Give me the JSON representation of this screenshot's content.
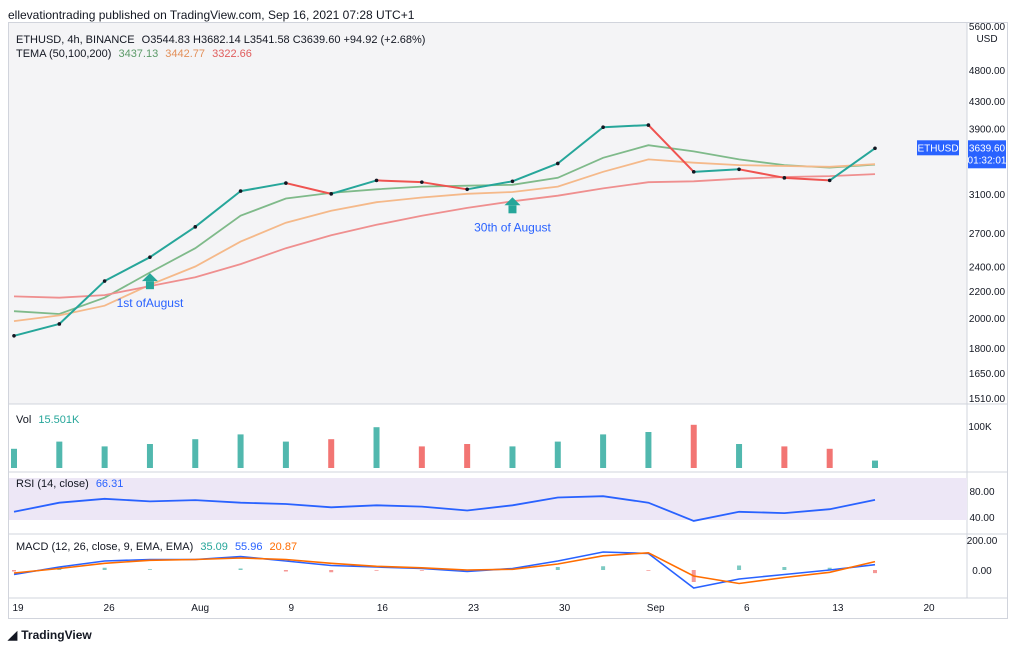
{
  "header": {
    "publisher_line": "ellevationtrading published on TradingView.com, Sep 16, 2021 07:28 UTC+1"
  },
  "main_legend": {
    "symbol": "ETHUSD, 4h, BINANCE",
    "ohlc": "O3544.83  H3682.14  L3541.58  C3639.60  +94.92 (+2.68%)",
    "tema_label": "TEMA (50,100,200)",
    "tema_values": [
      "3437.13",
      "3442.77",
      "3322.66"
    ]
  },
  "price_axis": {
    "currency": "USD",
    "ticks": [
      "5600.00",
      "4800.00",
      "4300.00",
      "3900.00",
      "3100.00",
      "2700.00",
      "2400.00",
      "2200.00",
      "2000.00",
      "1800.00",
      "1650.00",
      "1510.00"
    ],
    "last_price_tag": "ETHUSD",
    "last_price": "3639.60",
    "countdown": "01:32:01"
  },
  "volume": {
    "label": "Vol",
    "value": "15.501K",
    "axis_tick": "100K"
  },
  "rsi": {
    "label": "RSI (14, close)",
    "value": "66.31",
    "ticks": [
      "80.00",
      "40.00"
    ]
  },
  "macd": {
    "label": "MACD (12, 26, close, 9, EMA, EMA)",
    "values": [
      "35.09",
      "55.96",
      "20.87"
    ],
    "ticks": [
      "200.00",
      "0.00"
    ]
  },
  "time_axis": {
    "ticks": [
      "19",
      "26",
      "Aug",
      "9",
      "16",
      "23",
      "30",
      "Sep",
      "6",
      "13",
      "20"
    ]
  },
  "annotations": [
    {
      "text": "1st ofAugust"
    },
    {
      "text": "30th of August"
    }
  ],
  "footer": {
    "brand": "TradingView"
  },
  "colors": {
    "up": "#26a69a",
    "down": "#ef5350",
    "tema50": "#7fba8a",
    "tema100": "#f5b98a",
    "tema200": "#ef8f8f",
    "rsi": "#2962ff",
    "macd": "#2962ff",
    "signal": "#ff6d00",
    "price_tag": "#2962ff"
  },
  "chart_data": {
    "type": "line",
    "title": "ETHUSD, 4h, BINANCE",
    "x": [
      "Jul 19",
      "Jul 22",
      "Jul 26",
      "Aug 1",
      "Aug 5",
      "Aug 9",
      "Aug 13",
      "Aug 16",
      "Aug 20",
      "Aug 23",
      "Aug 27",
      "Aug 30",
      "Sep 2",
      "Sep 4",
      "Sep 6",
      "Sep 7",
      "Sep 9",
      "Sep 11",
      "Sep 13",
      "Sep 16"
    ],
    "series": [
      {
        "name": "ETHUSD",
        "values": [
          1880,
          1960,
          2280,
          2480,
          2760,
          3130,
          3220,
          3100,
          3250,
          3230,
          3150,
          3240,
          3450,
          3920,
          3950,
          3350,
          3380,
          3280,
          3250,
          3640
        ]
      },
      {
        "name": "TEMA 50",
        "values": [
          2050,
          2030,
          2150,
          2350,
          2560,
          2870,
          3050,
          3110,
          3150,
          3180,
          3190,
          3200,
          3280,
          3520,
          3680,
          3600,
          3500,
          3430,
          3400,
          3437
        ]
      },
      {
        "name": "TEMA 100",
        "values": [
          1980,
          2020,
          2090,
          2250,
          2400,
          2620,
          2800,
          2920,
          3010,
          3060,
          3100,
          3120,
          3180,
          3350,
          3500,
          3460,
          3430,
          3420,
          3410,
          3443
        ]
      },
      {
        "name": "TEMA 200",
        "values": [
          2160,
          2150,
          2170,
          2240,
          2310,
          2420,
          2560,
          2680,
          2780,
          2870,
          2950,
          3020,
          3080,
          3160,
          3230,
          3240,
          3270,
          3290,
          3300,
          3323
        ]
      }
    ],
    "volume": [
      40,
      55,
      45,
      50,
      60,
      70,
      55,
      60,
      85,
      45,
      50,
      45,
      55,
      70,
      75,
      90,
      50,
      45,
      40,
      15.5
    ],
    "rsi": [
      48,
      62,
      68,
      64,
      66,
      62,
      60,
      55,
      58,
      56,
      50,
      58,
      70,
      72,
      62,
      34,
      48,
      46,
      52,
      66.31
    ],
    "macd": [
      -30,
      20,
      60,
      70,
      70,
      90,
      60,
      30,
      20,
      10,
      -10,
      10,
      60,
      120,
      110,
      -120,
      -60,
      -30,
      0,
      35.09
    ],
    "signal": [
      -20,
      10,
      45,
      65,
      70,
      80,
      70,
      45,
      25,
      15,
      0,
      5,
      40,
      95,
      115,
      -40,
      -90,
      -50,
      -15,
      55.96
    ],
    "ylim": [
      1510,
      5600
    ],
    "log_scale": true,
    "grid": false,
    "legend": "top-left"
  }
}
